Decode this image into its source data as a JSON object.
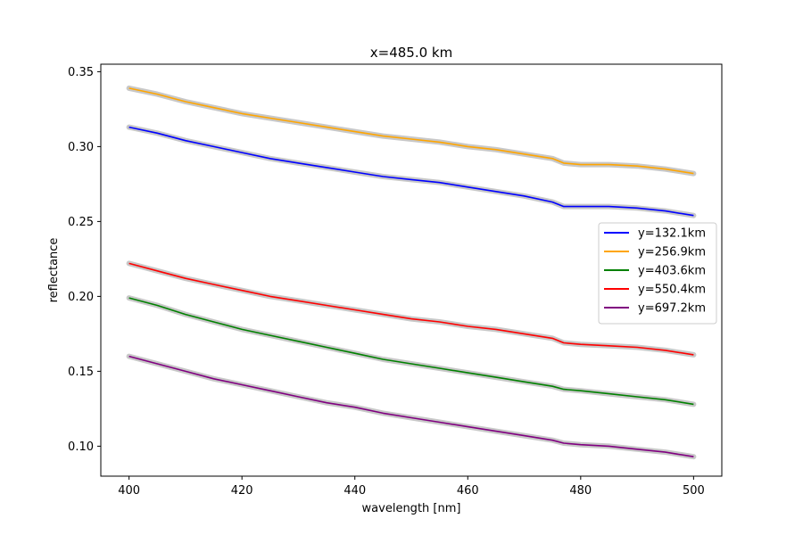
{
  "chart_data": {
    "type": "line",
    "title": "x=485.0 km",
    "xlabel": "wavelength [nm]",
    "ylabel": "reflectance",
    "xlim": [
      395,
      505
    ],
    "ylim": [
      0.08,
      0.355
    ],
    "xticks": [
      400,
      420,
      440,
      460,
      480,
      500
    ],
    "xtick_labels": [
      "400",
      "420",
      "440",
      "460",
      "480",
      "500"
    ],
    "yticks": [
      0.1,
      0.15,
      0.2,
      0.25,
      0.3,
      0.35
    ],
    "ytick_labels": [
      "0.10",
      "0.15",
      "0.20",
      "0.25",
      "0.30",
      "0.35"
    ],
    "grid": false,
    "legend_position": "center-right",
    "uncertainty_band_color": "#c8c8c8",
    "x": [
      400,
      405,
      410,
      415,
      420,
      425,
      430,
      435,
      440,
      445,
      450,
      455,
      460,
      465,
      470,
      475,
      477,
      480,
      485,
      490,
      495,
      500
    ],
    "series": [
      {
        "name": "y=132.1km",
        "color": "#0000ff",
        "values": [
          0.313,
          0.309,
          0.304,
          0.3,
          0.296,
          0.292,
          0.289,
          0.286,
          0.283,
          0.28,
          0.278,
          0.276,
          0.273,
          0.27,
          0.267,
          0.263,
          0.26,
          0.26,
          0.26,
          0.259,
          0.257,
          0.254
        ]
      },
      {
        "name": "y=256.9km",
        "color": "#ffa500",
        "values": [
          0.339,
          0.335,
          0.33,
          0.326,
          0.322,
          0.319,
          0.316,
          0.313,
          0.31,
          0.307,
          0.305,
          0.303,
          0.3,
          0.298,
          0.295,
          0.292,
          0.289,
          0.288,
          0.288,
          0.287,
          0.285,
          0.282
        ]
      },
      {
        "name": "y=403.6km",
        "color": "#008000",
        "values": [
          0.199,
          0.194,
          0.188,
          0.183,
          0.178,
          0.174,
          0.17,
          0.166,
          0.162,
          0.158,
          0.155,
          0.152,
          0.149,
          0.146,
          0.143,
          0.14,
          0.138,
          0.137,
          0.135,
          0.133,
          0.131,
          0.128
        ]
      },
      {
        "name": "y=550.4km",
        "color": "#ff0000",
        "values": [
          0.222,
          0.217,
          0.212,
          0.208,
          0.204,
          0.2,
          0.197,
          0.194,
          0.191,
          0.188,
          0.185,
          0.183,
          0.18,
          0.178,
          0.175,
          0.172,
          0.169,
          0.168,
          0.167,
          0.166,
          0.164,
          0.161
        ]
      },
      {
        "name": "y=697.2km",
        "color": "#800080",
        "values": [
          0.16,
          0.155,
          0.15,
          0.145,
          0.141,
          0.137,
          0.133,
          0.129,
          0.126,
          0.122,
          0.119,
          0.116,
          0.113,
          0.11,
          0.107,
          0.104,
          0.102,
          0.101,
          0.1,
          0.098,
          0.096,
          0.093
        ]
      }
    ]
  }
}
